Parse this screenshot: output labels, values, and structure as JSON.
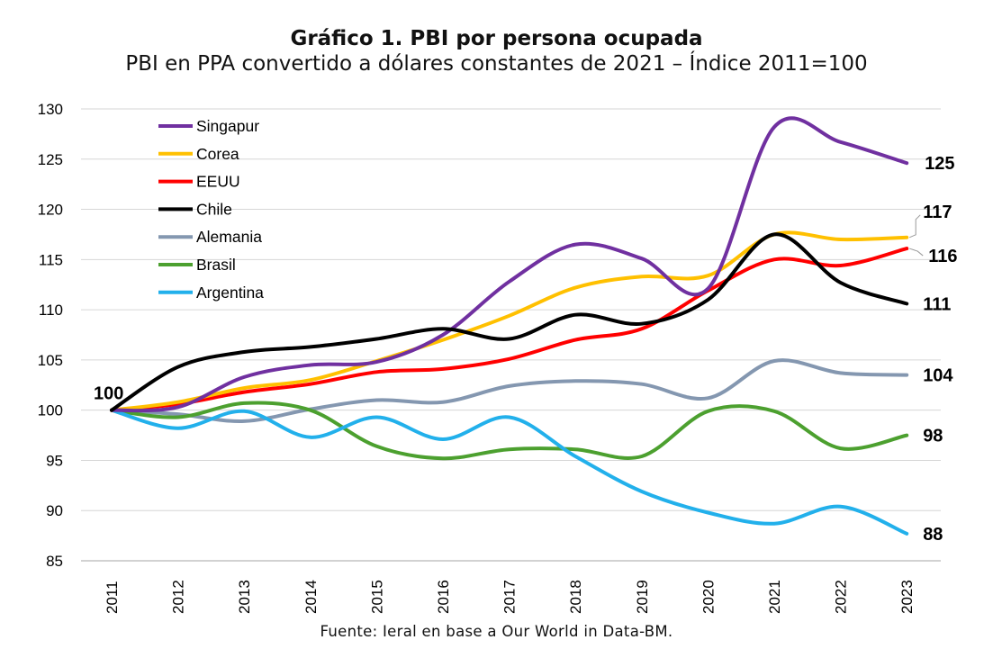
{
  "title": "Gráfico 1. PBI por persona ocupada",
  "subtitle": "PBI en PPA convertido a dólares constantes de 2021 – Índice 2011=100",
  "source": "Fuente: Ieral en base a Our World in Data-BM.",
  "chart_data": {
    "type": "line",
    "x": [
      "2011",
      "2012",
      "2013",
      "2014",
      "2015",
      "2016",
      "2017",
      "2018",
      "2019",
      "2020",
      "2021",
      "2022",
      "2023"
    ],
    "ylim": [
      85,
      130
    ],
    "yticks": [
      85,
      90,
      95,
      100,
      105,
      110,
      115,
      120,
      125,
      130
    ],
    "grid": true,
    "legend_position": "top-left",
    "start_label": "100",
    "series": [
      {
        "name": "Singapur",
        "color": "#7030a0",
        "values": [
          100,
          100.3,
          103.3,
          104.5,
          104.8,
          107.5,
          112.8,
          116.5,
          115.1,
          112.1,
          128.2,
          126.7,
          124.6
        ],
        "end_label": "125"
      },
      {
        "name": "Corea",
        "color": "#ffc000",
        "values": [
          100,
          100.8,
          102.2,
          103.0,
          104.9,
          107.0,
          109.4,
          112.2,
          113.3,
          113.4,
          117.5,
          117.0,
          117.2
        ],
        "end_label": "117"
      },
      {
        "name": "EEUU",
        "color": "#ff0000",
        "values": [
          100,
          100.6,
          101.8,
          102.6,
          103.8,
          104.1,
          105.1,
          107.0,
          108.1,
          111.9,
          115.0,
          114.4,
          116.1
        ],
        "end_label": "116"
      },
      {
        "name": "Chile",
        "color": "#000000",
        "values": [
          100,
          104.3,
          105.8,
          106.3,
          107.1,
          108.1,
          107.1,
          109.5,
          108.6,
          111.0,
          117.5,
          112.7,
          110.6
        ],
        "end_label": "111"
      },
      {
        "name": "Alemania",
        "color": "#8497b0",
        "values": [
          100,
          99.6,
          98.9,
          100.1,
          101.0,
          100.8,
          102.4,
          102.9,
          102.6,
          101.2,
          104.9,
          103.7,
          103.5
        ],
        "end_label": "104"
      },
      {
        "name": "Brasil",
        "color": "#4ca02f",
        "values": [
          100,
          99.3,
          100.7,
          100.0,
          96.4,
          95.2,
          96.1,
          96.1,
          95.4,
          99.9,
          99.9,
          96.2,
          97.5
        ],
        "end_label": "98"
      },
      {
        "name": "Argentina",
        "color": "#22b0eb",
        "values": [
          100,
          98.2,
          99.9,
          97.3,
          99.3,
          97.1,
          99.3,
          95.4,
          91.9,
          89.8,
          88.7,
          90.4,
          87.7
        ],
        "end_label": "88"
      }
    ]
  }
}
